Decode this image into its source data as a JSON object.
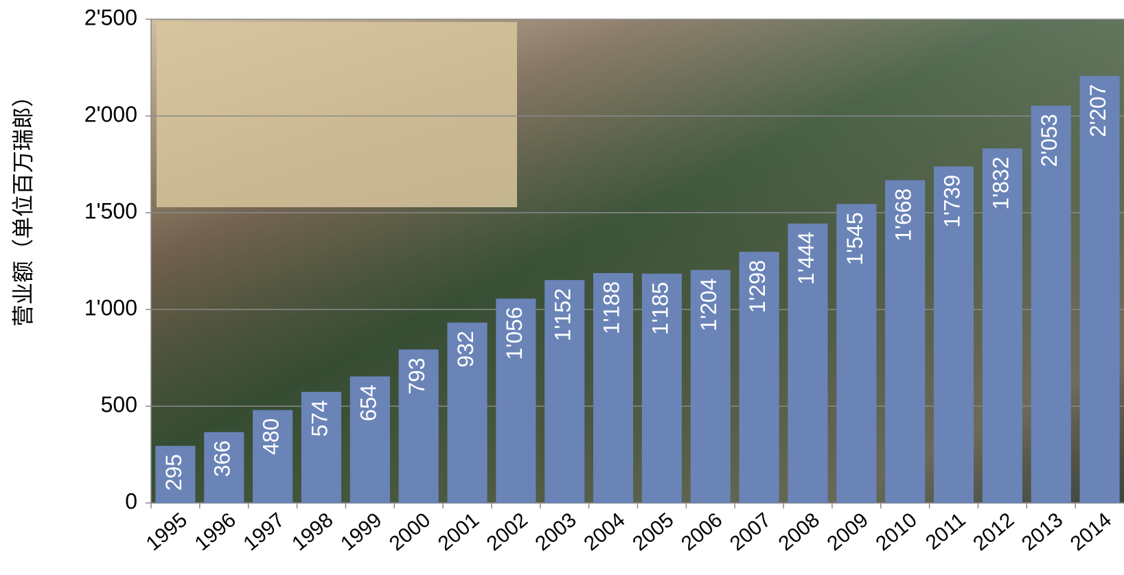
{
  "chart_data": {
    "type": "bar",
    "y_label": "营业额（单位百万瑞郎）",
    "categories": [
      "1995",
      "1996",
      "1997",
      "1998",
      "1999",
      "2000",
      "2001",
      "2002",
      "2003",
      "2004",
      "2005",
      "2006",
      "2007",
      "2008",
      "2009",
      "2010",
      "2011",
      "2012",
      "2013",
      "2014"
    ],
    "values": [
      295,
      366,
      480,
      574,
      654,
      793,
      932,
      1056,
      1152,
      1188,
      1185,
      1204,
      1298,
      1444,
      1545,
      1668,
      1739,
      1832,
      2053,
      2207
    ],
    "value_labels": [
      "295",
      "366",
      "480",
      "574",
      "654",
      "793",
      "932",
      "1'056",
      "1'152",
      "1'188",
      "1'185",
      "1'204",
      "1'298",
      "1'444",
      "1'545",
      "1'668",
      "1'739",
      "1'832",
      "2'053",
      "2'207"
    ],
    "color": "#6a84b8",
    "ylim": [
      0,
      2500
    ],
    "yticks": [
      0,
      500,
      {
        "value": 1000,
        "label": "1'000"
      },
      {
        "value": 1500,
        "label": "1'500"
      },
      {
        "value": 2000,
        "label": "2'000"
      },
      {
        "value": 2500,
        "label": "2'500"
      }
    ],
    "grid": true
  }
}
